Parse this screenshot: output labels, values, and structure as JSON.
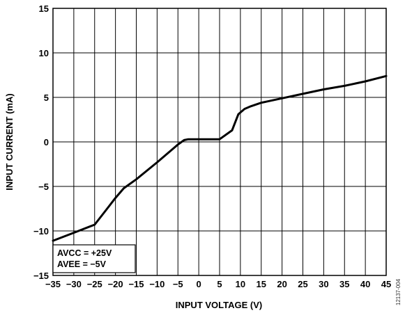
{
  "chart_data": {
    "type": "line",
    "title": "",
    "xlabel": "INPUT VOLTAGE (V)",
    "ylabel": "INPUT CURRENT (mA)",
    "xlim": [
      -35,
      45
    ],
    "ylim": [
      -15,
      15
    ],
    "x_ticks": [
      -35,
      -30,
      -25,
      -20,
      -15,
      -10,
      -5,
      0,
      5,
      10,
      15,
      20,
      25,
      30,
      35,
      40,
      45
    ],
    "x_tick_labels": [
      "−35",
      "−30",
      "−25",
      "−20",
      "−15",
      "−10",
      "−5",
      "0",
      "5",
      "10",
      "15",
      "20",
      "25",
      "30",
      "35",
      "40",
      "45"
    ],
    "y_ticks": [
      -15,
      -10,
      -5,
      0,
      5,
      10,
      15
    ],
    "y_tick_labels": [
      "−15",
      "−10",
      "−5",
      "0",
      "5",
      "10",
      "15"
    ],
    "grid": true,
    "series": [
      {
        "x": [
          -35,
          -30,
          -25,
          -22,
          -20,
          -18,
          -15,
          -10,
          -5,
          -3.5,
          -2.5,
          0,
          5,
          8,
          9.5,
          11,
          12.5,
          15,
          20,
          25,
          30,
          35,
          40,
          45
        ],
        "y": [
          -11.1,
          -10.2,
          -9.3,
          -7.5,
          -6.3,
          -5.2,
          -4.2,
          -2.3,
          -0.3,
          0.2,
          0.3,
          0.3,
          0.3,
          1.3,
          3.1,
          3.7,
          4.0,
          4.4,
          4.9,
          5.4,
          5.9,
          6.3,
          6.8,
          7.4
        ],
        "color": "#000000"
      }
    ],
    "annotations": [
      "AVCC = +25V",
      "AVEE = −5V"
    ]
  },
  "figure_id": "12137-004"
}
